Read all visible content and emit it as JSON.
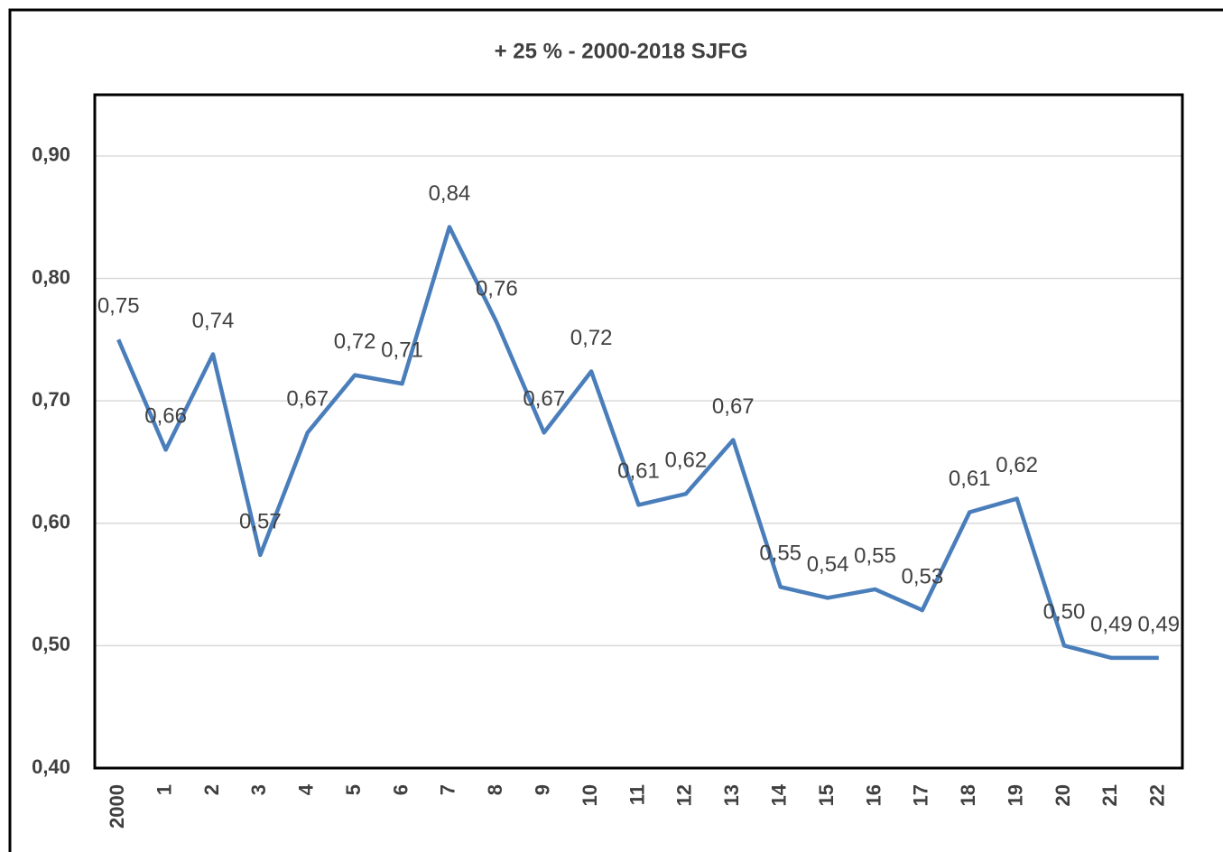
{
  "chart_data": {
    "type": "line",
    "title": "+ 25 % - 2000-2018 SJFG",
    "categories": [
      "2000",
      "1",
      "2",
      "3",
      "4",
      "5",
      "6",
      "7",
      "8",
      "9",
      "10",
      "11",
      "12",
      "13",
      "14",
      "15",
      "16",
      "17",
      "18",
      "19",
      "20",
      "21",
      "22"
    ],
    "series": [
      {
        "name": "+ 25 %",
        "color": "#4a7ebb",
        "values": [
          0.75,
          0.66,
          0.738,
          0.574,
          0.674,
          0.721,
          0.714,
          0.842,
          0.764,
          0.674,
          0.724,
          0.615,
          0.624,
          0.668,
          0.548,
          0.539,
          0.546,
          0.529,
          0.609,
          0.62,
          0.5,
          0.49,
          0.49
        ],
        "value_labels": [
          "0,75",
          "0,66",
          "0,74",
          "0,57",
          "0,67",
          "0,72",
          "0,71",
          "0,84",
          "0,76",
          "0,67",
          "0,72",
          "0,61",
          "0,62",
          "0,67",
          "0,55",
          "0,54",
          "0,55",
          "0,53",
          "0,61",
          "0,62",
          "0,50",
          "0,49",
          "0,49"
        ]
      }
    ],
    "ylim": [
      0.4,
      0.95
    ],
    "yticks": [
      {
        "value": 0.4,
        "label": "0,40"
      },
      {
        "value": 0.5,
        "label": "0,50"
      },
      {
        "value": 0.6,
        "label": "0,60"
      },
      {
        "value": 0.7,
        "label": "0,70"
      },
      {
        "value": 0.8,
        "label": "0,80"
      },
      {
        "value": 0.9,
        "label": "0,90"
      }
    ],
    "grid": true
  }
}
